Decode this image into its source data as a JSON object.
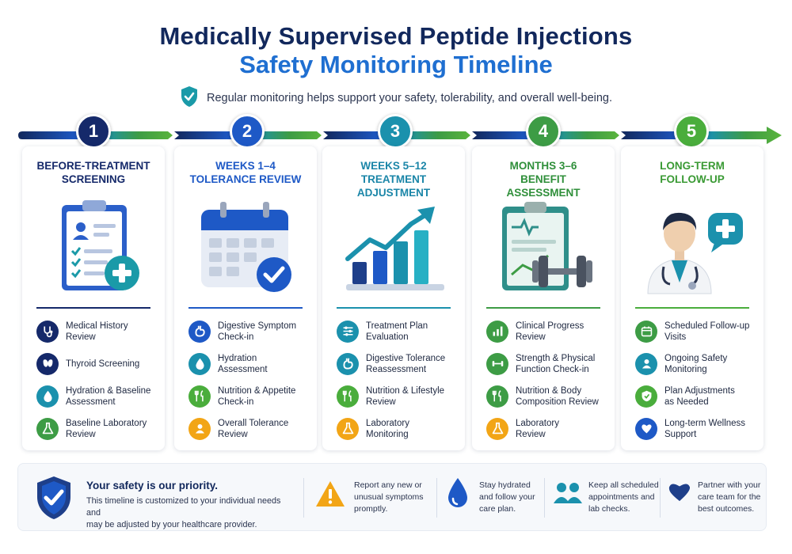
{
  "header": {
    "title_line1": "Medically Supervised Peptide Injections",
    "title_line2": "Safety Monitoring Timeline",
    "subtitle": "Regular monitoring helps support your safety, tolerability, and overall well-being.",
    "subtitle_icon": "shield-check-icon"
  },
  "colors": {
    "navy": "#12285c",
    "blue": "#1f6fd1",
    "teal": "#1a9aa8",
    "green": "#3ea347",
    "step_colors": [
      "#15296a",
      "#1e59c6",
      "#1b91ad",
      "#3d9c45",
      "#4aad3c"
    ]
  },
  "steps": [
    {
      "number": "1",
      "title_line1": "BEFORE-TREATMENT",
      "title_line2": "SCREENING",
      "title_line3": "",
      "illustration": "clipboard-checklist-icon",
      "items": [
        {
          "label_line1": "Medical History",
          "label_line2": "Review",
          "icon": "stethoscope-icon"
        },
        {
          "label_line1": "Thyroid Screening",
          "label_line2": "",
          "icon": "thyroid-icon"
        },
        {
          "label_line1": "Hydration & Baseline",
          "label_line2": "Assessment",
          "icon": "water-drop-icon"
        },
        {
          "label_line1": "Baseline Laboratory",
          "label_line2": "Review",
          "icon": "lab-flask-icon"
        }
      ]
    },
    {
      "number": "2",
      "title_line1": "WEEKS 1–4",
      "title_line2": "TOLERANCE REVIEW",
      "title_line3": "",
      "illustration": "calendar-check-icon",
      "items": [
        {
          "label_line1": "Digestive Symptom",
          "label_line2": "Check-in",
          "icon": "stomach-icon"
        },
        {
          "label_line1": "Hydration",
          "label_line2": "Assessment",
          "icon": "water-drop-icon"
        },
        {
          "label_line1": "Nutrition & Appetite",
          "label_line2": "Check-in",
          "icon": "fork-knife-icon"
        },
        {
          "label_line1": "Overall Tolerance",
          "label_line2": "Review",
          "icon": "person-icon"
        }
      ]
    },
    {
      "number": "3",
      "title_line1": "WEEKS 5–12",
      "title_line2": "TREATMENT",
      "title_line3": "ADJUSTMENT",
      "illustration": "bar-chart-trend-icon",
      "items": [
        {
          "label_line1": "Treatment Plan",
          "label_line2": "Evaluation",
          "icon": "sliders-icon"
        },
        {
          "label_line1": "Digestive Tolerance",
          "label_line2": "Reassessment",
          "icon": "stomach-icon"
        },
        {
          "label_line1": "Nutrition & Lifestyle",
          "label_line2": "Review",
          "icon": "fork-knife-icon"
        },
        {
          "label_line1": "Laboratory",
          "label_line2": "Monitoring",
          "icon": "lab-flask-icon"
        }
      ]
    },
    {
      "number": "4",
      "title_line1": "MONTHS 3–6",
      "title_line2": "BENEFIT",
      "title_line3": "ASSESSMENT",
      "illustration": "clipboard-dumbbell-icon",
      "items": [
        {
          "label_line1": "Clinical Progress",
          "label_line2": "Review",
          "icon": "bar-chart-icon"
        },
        {
          "label_line1": "Strength & Physical",
          "label_line2": "Function Check-in",
          "icon": "dumbbell-icon"
        },
        {
          "label_line1": "Nutrition & Body",
          "label_line2": "Composition Review",
          "icon": "fork-knife-icon"
        },
        {
          "label_line1": "Laboratory",
          "label_line2": "Review",
          "icon": "lab-flask-icon"
        }
      ]
    },
    {
      "number": "5",
      "title_line1": "LONG-TERM",
      "title_line2": "FOLLOW-UP",
      "title_line3": "",
      "illustration": "doctor-chat-icon",
      "items": [
        {
          "label_line1": "Scheduled Follow-up",
          "label_line2": "Visits",
          "icon": "calendar-icon"
        },
        {
          "label_line1": "Ongoing Safety",
          "label_line2": "Monitoring",
          "icon": "person-icon"
        },
        {
          "label_line1": "Plan Adjustments",
          "label_line2": "as Needed",
          "icon": "shield-check-icon"
        },
        {
          "label_line1": "Long-term Wellness",
          "label_line2": "Support",
          "icon": "heart-icon"
        }
      ]
    }
  ],
  "footer": {
    "heading": "Your safety is our priority.",
    "text_line1": "This timeline is customized to your individual needs and",
    "text_line2": "may be adjusted by your healthcare provider.",
    "tips": [
      {
        "line1": "Report any new or",
        "line2": "unusual symptoms",
        "line3": "promptly.",
        "icon": "warning-icon"
      },
      {
        "line1": "Stay hydrated",
        "line2": "and follow your",
        "line3": "care plan.",
        "icon": "water-drop-icon"
      },
      {
        "line1": "Keep all scheduled",
        "line2": "appointments and",
        "line3": "lab checks.",
        "icon": "people-icon"
      },
      {
        "line1": "Partner with your",
        "line2": "care team for the",
        "line3": "best outcomes.",
        "icon": "heart-icon"
      }
    ]
  }
}
